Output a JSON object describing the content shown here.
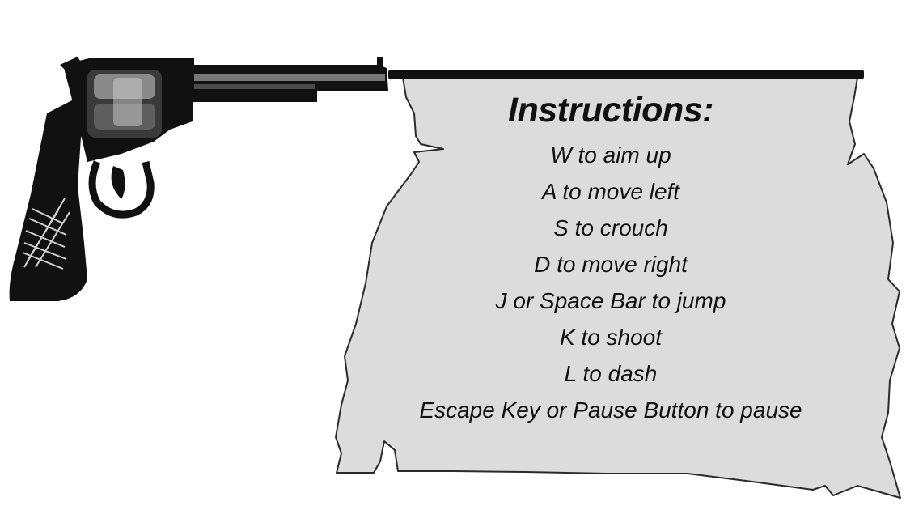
{
  "instructions": {
    "title": "Instructions:",
    "items": [
      "W to aim up",
      "A to move left",
      "S to crouch",
      "D to move right",
      "J or Space Bar to jump",
      "K to shoot",
      "L to dash",
      "Escape Key or Pause Button to pause"
    ]
  },
  "colors": {
    "paper": "#dcdcdc",
    "ink": "#111111",
    "background": "#ffffff"
  },
  "icons": {
    "revolver": "revolver-icon",
    "banner": "torn-paper-banner"
  }
}
